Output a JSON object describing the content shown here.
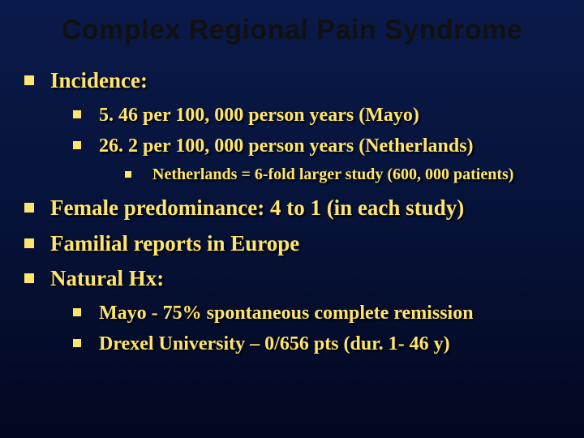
{
  "slide": {
    "title": "Complex Regional Pain Syndrome",
    "bg_gradient": [
      "#0a1a4a",
      "#061238",
      "#030820"
    ],
    "text_color": "#ffe56b",
    "title_color": "#111111",
    "bullet_color": "#ffe56b",
    "title_font": "Arial",
    "body_font": "Times New Roman",
    "title_fontsize_pt": 26,
    "lvl1_fontsize_pt": 20,
    "lvl2_fontsize_pt": 18,
    "lvl3_fontsize_pt": 15
  },
  "items": {
    "b1": "Incidence:",
    "b1_1": "5. 46 per 100, 000 person years (Mayo)",
    "b1_2": "26. 2 per 100, 000 person years (Netherlands)",
    "b1_2_1": "Netherlands = 6-fold larger study (600, 000 patients)",
    "b2": "Female predominance: 4 to 1 (in each study)",
    "b3": "Familial reports in Europe",
    "b4": "Natural Hx:",
    "b4_1": "Mayo - 75% spontaneous complete remission",
    "b4_2": "Drexel University – 0/656 pts (dur. 1- 46 y)"
  }
}
